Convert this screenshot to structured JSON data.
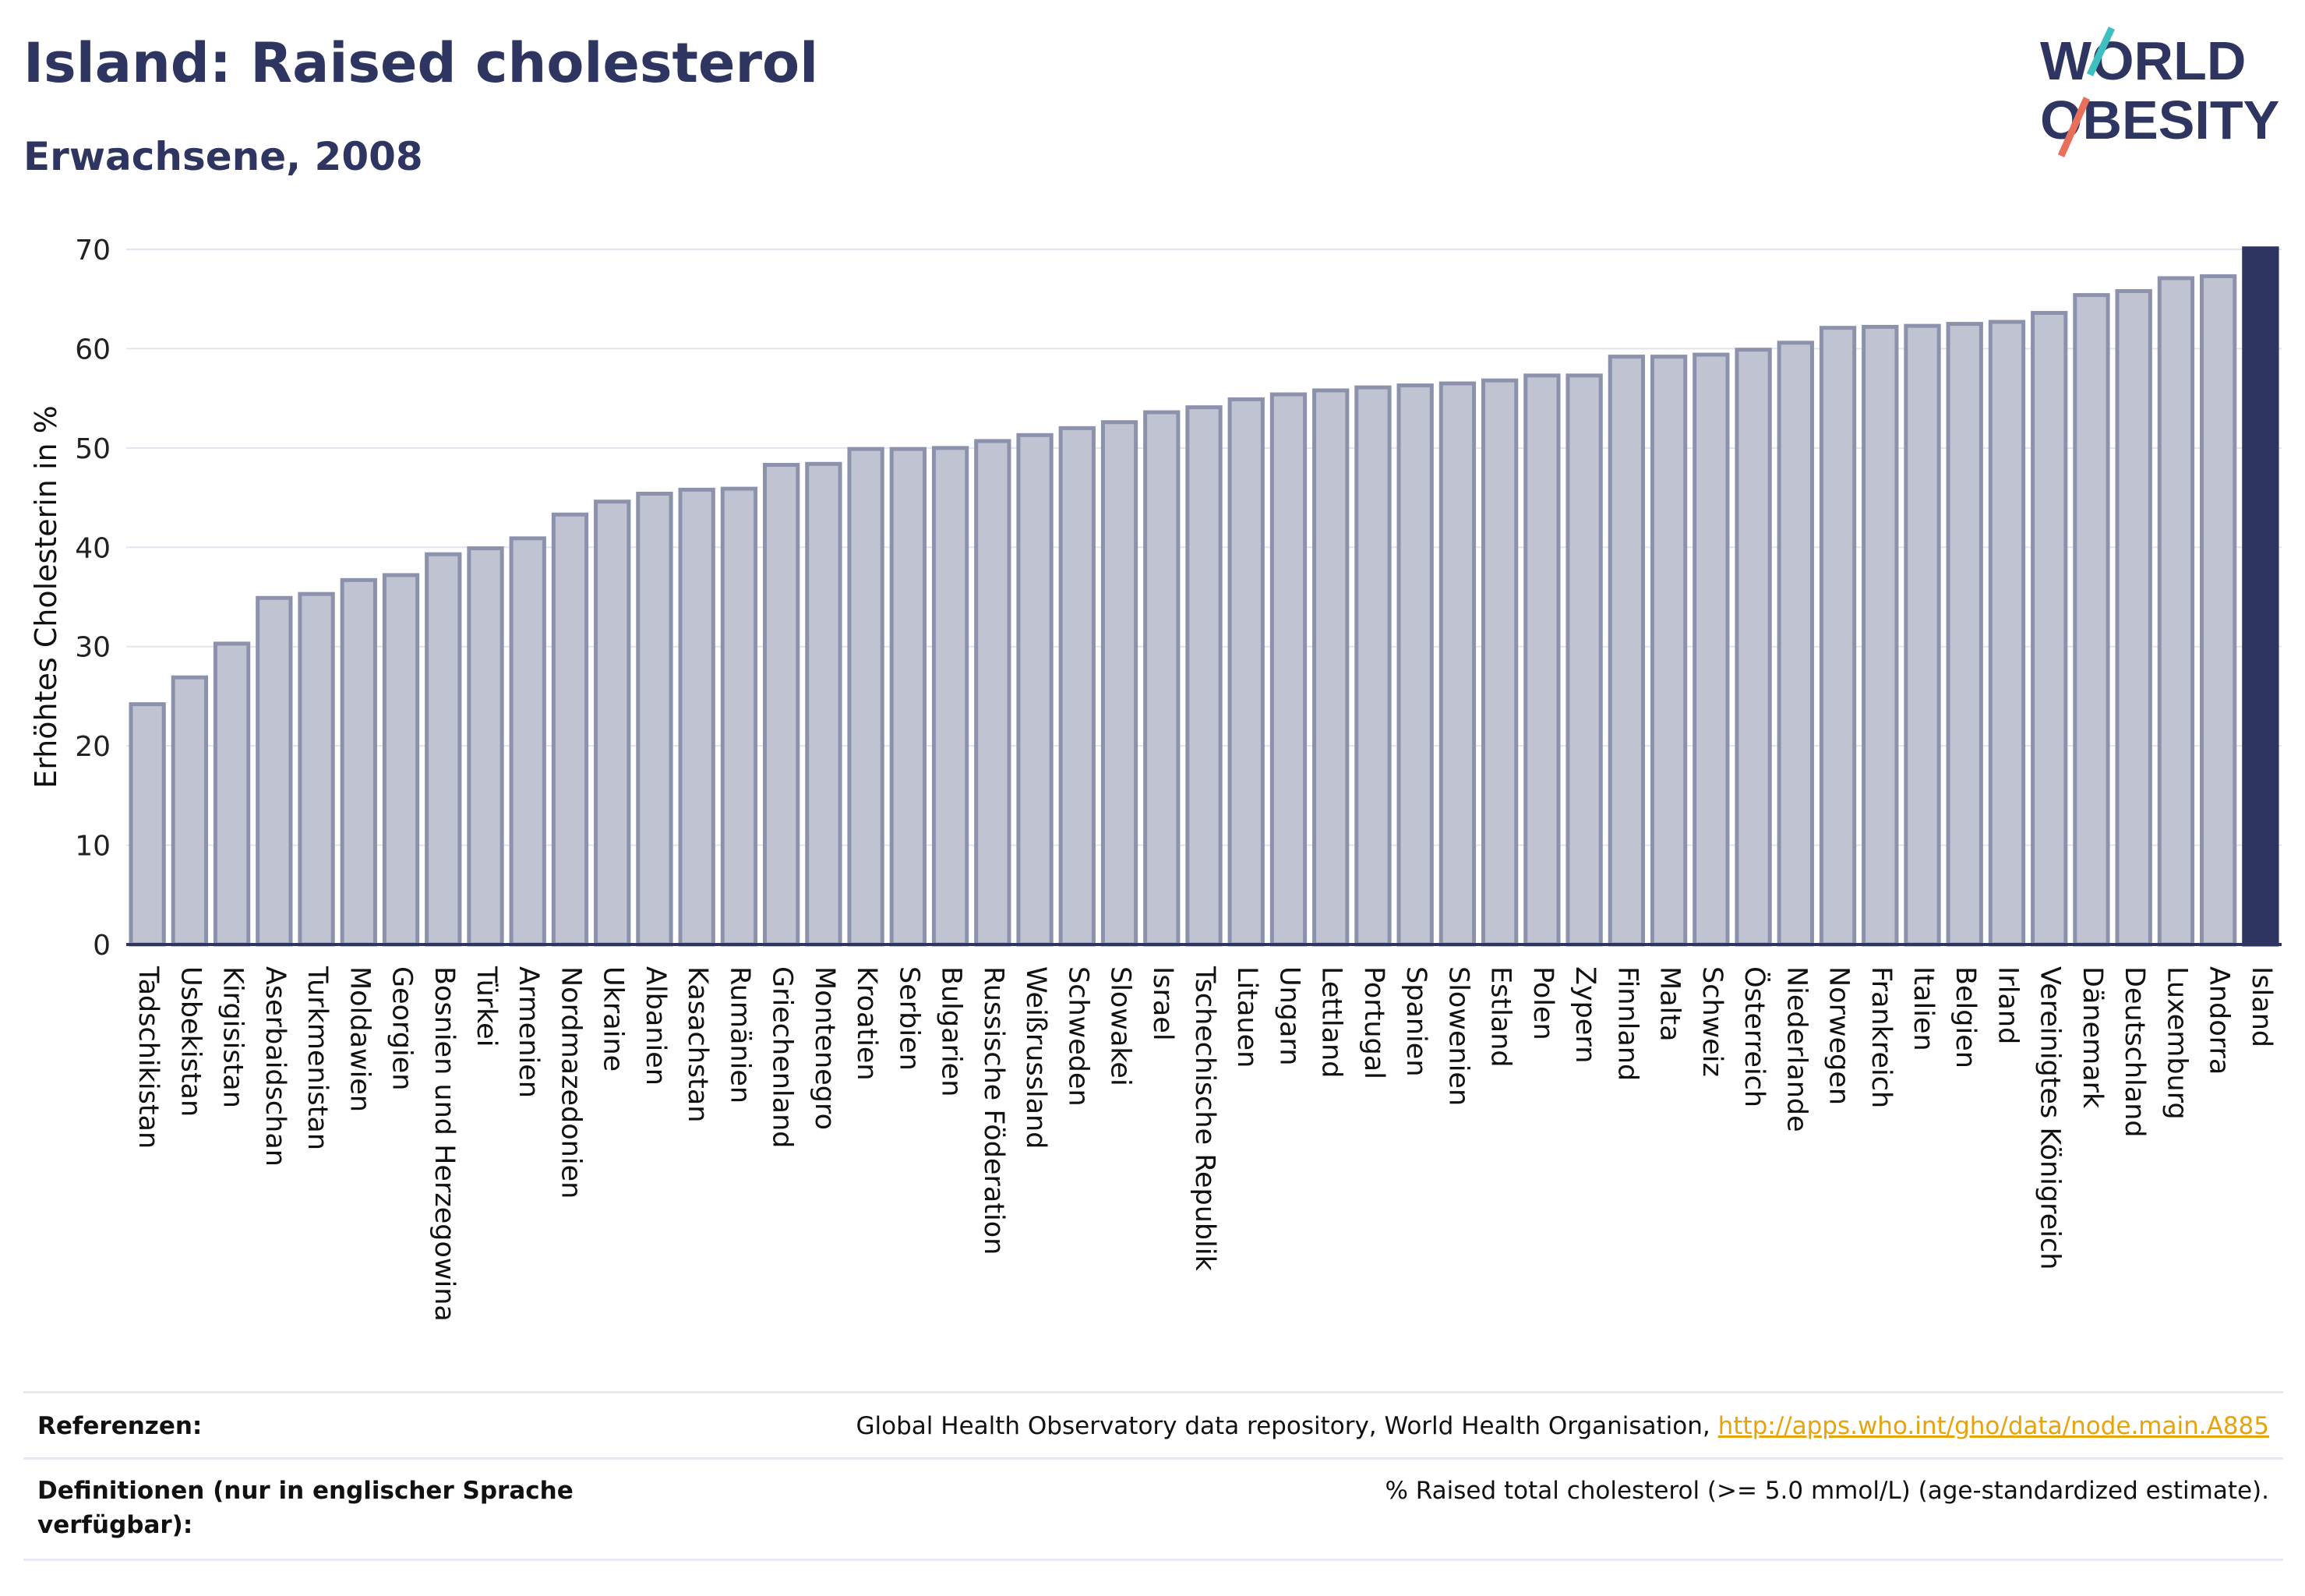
{
  "header": {
    "title": "Island: Raised cholesterol",
    "subtitle": "Erwachsene, 2008",
    "logo_line1": "WORLD",
    "logo_line2": "OBESITY"
  },
  "colors": {
    "highlight_bar": "#2d3560",
    "normal_bar_fill": "#bfc3d2",
    "normal_bar_stroke": "#8c92ab",
    "text": "#2d3560",
    "link": "#e6a40a",
    "logo_accent_teal": "#3fc0c0",
    "logo_accent_coral": "#e8705a"
  },
  "chart_data": {
    "type": "bar",
    "ylabel": "Erhöhtes Cholesterin in %",
    "ylim": [
      0,
      70
    ],
    "yticks": [
      0,
      10,
      20,
      30,
      40,
      50,
      60,
      70
    ],
    "grid": true,
    "highlight": "Island",
    "categories": [
      "Tadschikistan",
      "Usbekistan",
      "Kirgisistan",
      "Aserbaidschan",
      "Turkmenistan",
      "Moldawien",
      "Georgien",
      "Bosnien und Herzegowina",
      "Türkei",
      "Armenien",
      "Nordmazedonien",
      "Ukraine",
      "Albanien",
      "Kasachstan",
      "Rumänien",
      "Griechenland",
      "Montenegro",
      "Kroatien",
      "Serbien",
      "Bulgarien",
      "Russische Föderation",
      "Weißrussland",
      "Schweden",
      "Slowakei",
      "Israel",
      "Tschechische Republik",
      "Litauen",
      "Ungarn",
      "Lettland",
      "Portugal",
      "Spanien",
      "Slowenien",
      "Estland",
      "Polen",
      "Zypern",
      "Finnland",
      "Malta",
      "Schweiz",
      "Österreich",
      "Niederlande",
      "Norwegen",
      "Frankreich",
      "Italien",
      "Belgien",
      "Irland",
      "Vereinigtes Königreich",
      "Dänemark",
      "Deutschland",
      "Luxemburg",
      "Andorra",
      "Island"
    ],
    "values": [
      24.2,
      26.9,
      30.3,
      34.9,
      35.3,
      36.7,
      37.2,
      39.3,
      39.9,
      40.9,
      43.3,
      44.6,
      45.4,
      45.8,
      45.9,
      48.3,
      48.4,
      49.9,
      49.9,
      50.0,
      50.7,
      51.3,
      52.0,
      52.6,
      53.6,
      54.1,
      54.9,
      55.4,
      55.8,
      56.1,
      56.3,
      56.5,
      56.8,
      57.3,
      57.3,
      59.2,
      59.2,
      59.4,
      59.9,
      60.6,
      62.1,
      62.2,
      62.3,
      62.5,
      62.7,
      63.6,
      65.4,
      65.8,
      67.1,
      67.3,
      70.1
    ]
  },
  "footer": {
    "ref_label": "Referenzen:",
    "ref_text": "Global Health Observatory data repository, World Health Organisation, ",
    "ref_link": "http://apps.who.int/gho/data/node.main.A885",
    "def_label": "Definitionen (nur in englischer Sprache verfügbar):",
    "def_text": "% Raised total cholesterol (>= 5.0 mmol/L) (age-standardized estimate)."
  }
}
